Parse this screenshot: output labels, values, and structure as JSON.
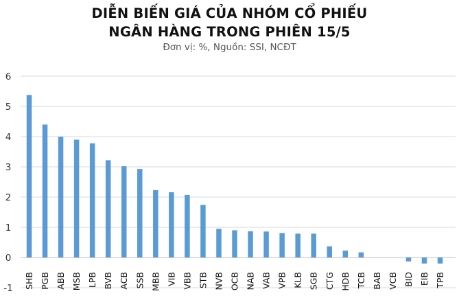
{
  "header": {
    "title_line1": "DIỄN BIẾN GIÁ CỦA NHÓM CỔ PHIẾU",
    "title_line2": "NGÂN HÀNG TRONG PHIÊN 15/5",
    "subtitle": "Đơn vị: %, Nguồn: SSI, NCĐT"
  },
  "chart_data": {
    "type": "bar",
    "title": "DIỄN BIẾN GIÁ CỦA NHÓM CỔ PHIẾU NGÂN HÀNG TRONG PHIÊN 15/5",
    "subtitle": "Đơn vị: %, Nguồn: SSI, NCĐT",
    "xlabel": "",
    "ylabel": "",
    "ylim": [
      -1,
      6
    ],
    "yticks": [
      -1,
      0,
      1,
      2,
      3,
      4,
      5,
      6
    ],
    "ytick_labels": [
      "-1",
      "0",
      "1",
      "2",
      "3",
      "4",
      "5",
      "6"
    ],
    "grid": true,
    "legend": "none",
    "bar_color": "#5b9bd5",
    "categories": [
      "SHB",
      "PGB",
      "ABB",
      "MSB",
      "LPB",
      "BVB",
      "ACB",
      "SSB",
      "MBB",
      "VIB",
      "VBB",
      "STB",
      "NVB",
      "OCB",
      "NAB",
      "VAB",
      "VPB",
      "KLB",
      "SGB",
      "CTG",
      "HDB",
      "TCB",
      "BAB",
      "VCB",
      "BID",
      "EIB",
      "TPB"
    ],
    "values": [
      5.38,
      4.4,
      4.0,
      3.9,
      3.78,
      3.22,
      3.02,
      2.93,
      2.23,
      2.16,
      2.07,
      1.74,
      0.95,
      0.9,
      0.87,
      0.86,
      0.81,
      0.79,
      0.79,
      0.37,
      0.23,
      0.17,
      0.0,
      0.0,
      -0.13,
      -0.2,
      -0.2
    ]
  }
}
